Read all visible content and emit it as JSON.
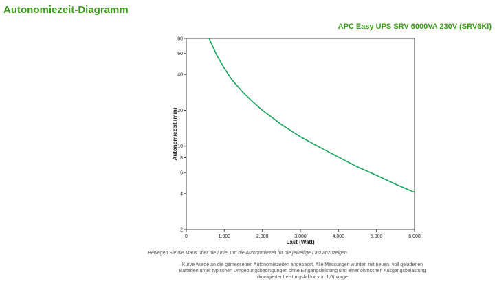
{
  "page": {
    "title": "Autonomiezeit-Diagramm",
    "product": "APC Easy UPS SRV 6000VA 230V (SRV6KI)",
    "hint": "Bewegen Sie die Maus über die Linie, um die Autonomiezeit für die jeweilige Last anzuzeigen",
    "note": "Kurve wurde an die gemessenen Autonomiezeiten angepasst. Alle Messungen wurden mit neuen, voll geladenen Batterien unter typischen Umgebungsbedingungen ohne Eingangsleistung und einer ohmschen Ausgangsbelastung (korrigierter Leistungsfaktor von 1,0) vorge"
  },
  "colors": {
    "accent": "#3a9a1a",
    "line": "#1aa35e"
  },
  "chart_data": {
    "type": "line",
    "title": "",
    "xlabel": "Last (Watt)",
    "ylabel": "Autonomiezeit (min)",
    "xlim": [
      0,
      6000
    ],
    "ylim": [
      2,
      80
    ],
    "yscale": "log",
    "grid": false,
    "x_ticks": [
      {
        "value": 0,
        "label": "0"
      },
      {
        "value": 1000,
        "label": "1,000"
      },
      {
        "value": 2000,
        "label": "2,000"
      },
      {
        "value": 3000,
        "label": "3,000"
      },
      {
        "value": 4000,
        "label": "4,000"
      },
      {
        "value": 5000,
        "label": "5,000"
      },
      {
        "value": 6000,
        "label": "6,000"
      }
    ],
    "y_ticks": [
      {
        "value": 2,
        "label": "2"
      },
      {
        "value": 4,
        "label": "4"
      },
      {
        "value": 6,
        "label": "6"
      },
      {
        "value": 8,
        "label": "8"
      },
      {
        "value": 10,
        "label": "10"
      },
      {
        "value": 20,
        "label": "20"
      },
      {
        "value": 40,
        "label": "40"
      },
      {
        "value": 60,
        "label": "60"
      },
      {
        "value": 80,
        "label": "80"
      }
    ],
    "series": [
      {
        "points": [
          [
            600,
            80
          ],
          [
            800,
            58
          ],
          [
            1000,
            45
          ],
          [
            1200,
            36
          ],
          [
            1500,
            28
          ],
          [
            1750,
            23.5
          ],
          [
            2000,
            20
          ],
          [
            2500,
            15.2
          ],
          [
            3000,
            12
          ],
          [
            3500,
            9.8
          ],
          [
            4000,
            8.1
          ],
          [
            4500,
            6.7
          ],
          [
            5000,
            5.7
          ],
          [
            5500,
            4.8
          ],
          [
            6000,
            4.1
          ]
        ]
      }
    ]
  }
}
